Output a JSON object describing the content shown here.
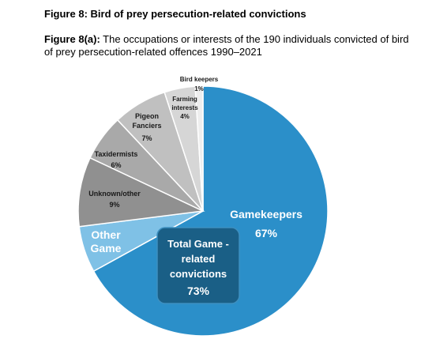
{
  "figure": {
    "title": "Figure 8: Bird of prey persecution-related convictions",
    "subtitle_lead": "Figure 8(a):",
    "subtitle_text": " The occupations or interests of the 190 individuals convicted of bird of prey persecution-related offences 1990–2021"
  },
  "chart_data": {
    "type": "pie",
    "title": "",
    "slices": [
      {
        "label": "Gamekeepers",
        "value": 67,
        "display": "67%",
        "color": "#2b8fc9"
      },
      {
        "label": "Other Game",
        "value": 6,
        "display": "",
        "color": "#7fc1e6"
      },
      {
        "label": "Unknown/other",
        "value": 9,
        "display": "9%",
        "color": "#909090"
      },
      {
        "label": "Taxidermists",
        "value": 6,
        "display": "6%",
        "color": "#a9a9a9"
      },
      {
        "label": "Pigeon Fanciers",
        "value": 7,
        "display": "7%",
        "color": "#c0c0c0"
      },
      {
        "label": "Farming interests",
        "value": 4,
        "display": "4%",
        "color": "#d6d6d6"
      },
      {
        "label": "Bird keepers",
        "value": 1,
        "display": "1%",
        "color": "#eeeeee"
      }
    ],
    "annotation": {
      "text": "Total Game - related convictions",
      "value": "73%",
      "color": "#1a5f86"
    }
  }
}
